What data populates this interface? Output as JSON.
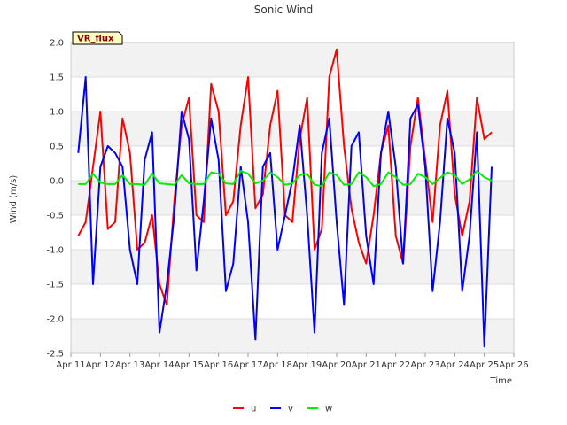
{
  "chart_data": {
    "type": "line",
    "title": "Sonic Wind",
    "xlabel": "Time",
    "ylabel": "Wind (m/s)",
    "badge": "VR_flux",
    "x_ticks": [
      "Apr 11",
      "Apr 12",
      "Apr 13",
      "Apr 14",
      "Apr 15",
      "Apr 16",
      "Apr 17",
      "Apr 18",
      "Apr 19",
      "Apr 20",
      "Apr 21",
      "Apr 22",
      "Apr 23",
      "Apr 24",
      "Apr 25",
      "Apr 26"
    ],
    "xlim": [
      11,
      26
    ],
    "ylim": [
      -2.5,
      2.0
    ],
    "y_ticks": [
      -2.5,
      -2.0,
      -1.5,
      -1.0,
      -0.5,
      0.0,
      0.5,
      1.0,
      1.5,
      2.0
    ],
    "y_tick_labels": [
      "-2.5",
      "-2.0",
      "-1.5",
      "-1.0",
      "-0.5",
      "0.0",
      "0.5",
      "1.0",
      "1.5",
      "2.0"
    ],
    "grid": "horizontal bands",
    "legend_position": "bottom-center",
    "series": [
      {
        "name": "u",
        "color": "#ff0000",
        "x": [
          11.25,
          11.5,
          11.75,
          12.0,
          12.25,
          12.5,
          12.75,
          13.0,
          13.25,
          13.5,
          13.75,
          14.0,
          14.25,
          14.5,
          14.75,
          15.0,
          15.25,
          15.5,
          15.75,
          16.0,
          16.25,
          16.5,
          16.75,
          17.0,
          17.25,
          17.5,
          17.75,
          18.0,
          18.25,
          18.5,
          18.75,
          19.0,
          19.25,
          19.5,
          19.75,
          20.0,
          20.25,
          20.5,
          20.75,
          21.0,
          21.25,
          21.5,
          21.75,
          22.0,
          22.25,
          22.5,
          22.75,
          23.0,
          23.25,
          23.5,
          23.75,
          24.0,
          24.25,
          24.5,
          24.75,
          25.0,
          25.25
        ],
        "values": [
          -0.8,
          -0.6,
          0.2,
          1.0,
          -0.7,
          -0.6,
          0.9,
          0.4,
          -1.0,
          -0.9,
          -0.5,
          -1.5,
          -1.8,
          -0.3,
          0.8,
          1.2,
          -0.5,
          -0.6,
          1.4,
          1.0,
          -0.5,
          -0.3,
          0.8,
          1.5,
          -0.4,
          -0.2,
          0.8,
          1.3,
          -0.5,
          -0.6,
          0.6,
          1.2,
          -1.0,
          -0.7,
          1.5,
          1.9,
          0.5,
          -0.4,
          -0.9,
          -1.2,
          -0.5,
          0.4,
          0.8,
          -0.8,
          -1.2,
          0.5,
          1.2,
          0.3,
          -0.6,
          0.8,
          1.3,
          -0.2,
          -0.8,
          -0.3,
          1.2,
          0.6,
          0.7
        ]
      },
      {
        "name": "v",
        "color": "#0000ff",
        "x": [
          11.25,
          11.5,
          11.75,
          12.0,
          12.25,
          12.5,
          12.75,
          13.0,
          13.25,
          13.5,
          13.75,
          14.0,
          14.25,
          14.5,
          14.75,
          15.0,
          15.25,
          15.5,
          15.75,
          16.0,
          16.25,
          16.5,
          16.75,
          17.0,
          17.25,
          17.5,
          17.75,
          18.0,
          18.25,
          18.5,
          18.75,
          19.0,
          19.25,
          19.5,
          19.75,
          20.0,
          20.25,
          20.5,
          20.75,
          21.0,
          21.25,
          21.5,
          21.75,
          22.0,
          22.25,
          22.5,
          22.75,
          23.0,
          23.25,
          23.5,
          23.75,
          24.0,
          24.25,
          24.5,
          24.75,
          25.0,
          25.25
        ],
        "values": [
          0.4,
          1.5,
          -1.5,
          0.2,
          0.5,
          0.4,
          0.2,
          -1.0,
          -1.5,
          0.3,
          0.7,
          -2.2,
          -1.5,
          -0.5,
          1.0,
          0.6,
          -1.3,
          -0.3,
          0.9,
          0.3,
          -1.6,
          -1.2,
          0.2,
          -0.6,
          -2.3,
          0.2,
          0.4,
          -1.0,
          -0.5,
          0.0,
          0.8,
          -0.5,
          -2.2,
          0.4,
          0.9,
          -0.6,
          -1.8,
          0.5,
          0.7,
          -0.8,
          -1.5,
          0.4,
          1.0,
          0.2,
          -1.2,
          0.9,
          1.1,
          0.2,
          -1.6,
          -0.6,
          0.9,
          0.4,
          -1.6,
          -0.8,
          0.7,
          -2.4,
          0.2
        ]
      },
      {
        "name": "w",
        "color": "#00ee00",
        "x": [
          11.25,
          11.5,
          11.75,
          12.0,
          12.25,
          12.5,
          12.75,
          13.0,
          13.25,
          13.5,
          13.75,
          14.0,
          14.25,
          14.5,
          14.75,
          15.0,
          15.25,
          15.5,
          15.75,
          16.0,
          16.25,
          16.5,
          16.75,
          17.0,
          17.25,
          17.5,
          17.75,
          18.0,
          18.25,
          18.5,
          18.75,
          19.0,
          19.25,
          19.5,
          19.75,
          20.0,
          20.25,
          20.5,
          20.75,
          21.0,
          21.25,
          21.5,
          21.75,
          22.0,
          22.25,
          22.5,
          22.75,
          23.0,
          23.25,
          23.5,
          23.75,
          24.0,
          24.25,
          24.5,
          24.75,
          25.0,
          25.25
        ],
        "values": [
          -0.05,
          -0.05,
          0.1,
          -0.03,
          -0.05,
          -0.05,
          0.08,
          -0.05,
          -0.05,
          -0.06,
          0.1,
          -0.04,
          -0.05,
          -0.06,
          0.08,
          -0.04,
          -0.05,
          -0.05,
          0.12,
          0.1,
          -0.04,
          -0.05,
          0.14,
          0.1,
          -0.04,
          0.0,
          0.12,
          0.05,
          -0.06,
          -0.04,
          0.08,
          0.1,
          -0.06,
          -0.08,
          0.12,
          0.08,
          -0.06,
          -0.05,
          0.12,
          0.05,
          -0.08,
          -0.05,
          0.12,
          0.05,
          -0.06,
          -0.05,
          0.1,
          0.05,
          -0.05,
          0.04,
          0.12,
          0.08,
          -0.05,
          0.02,
          0.14,
          0.05,
          0.0
        ]
      }
    ]
  }
}
